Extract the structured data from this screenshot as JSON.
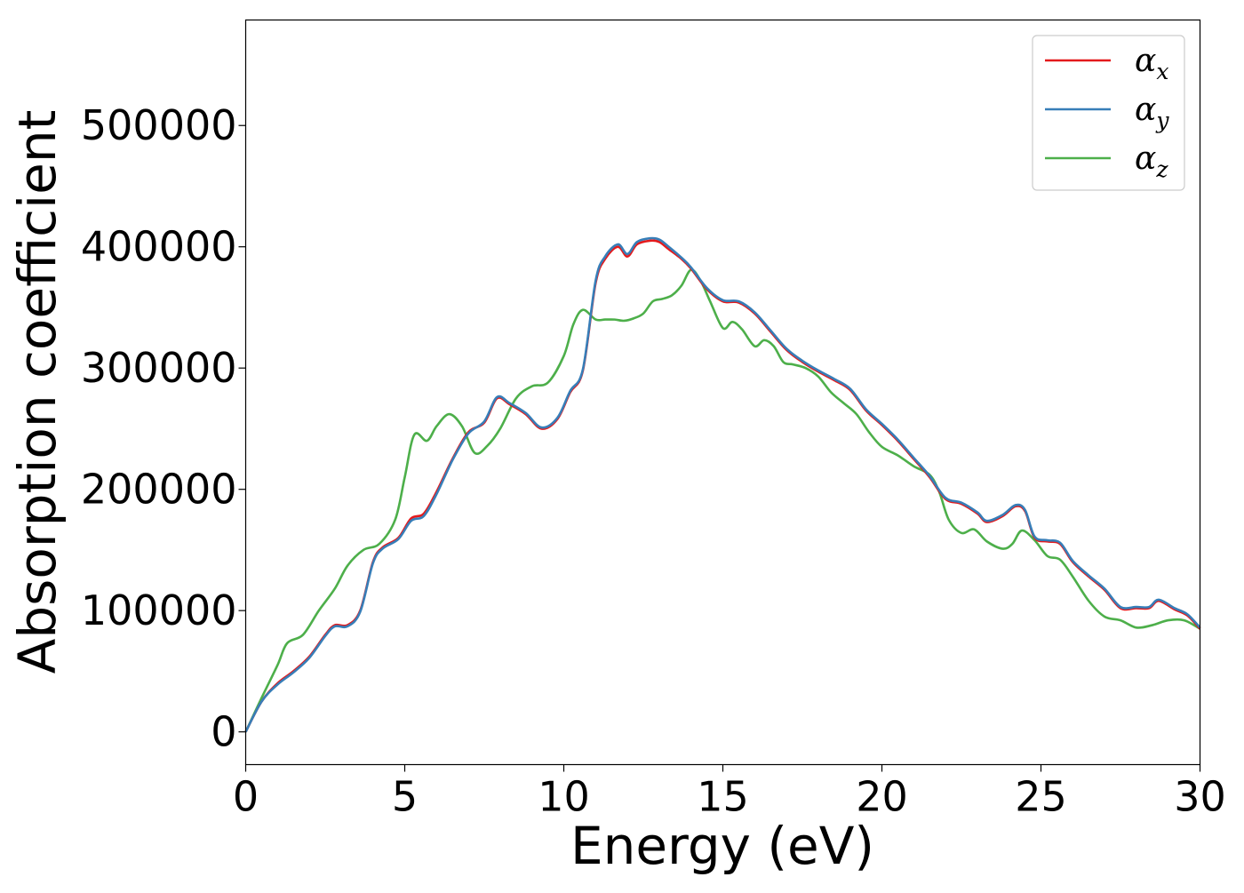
{
  "chart_data": {
    "type": "line",
    "xlabel": "Energy (eV)",
    "ylabel": "Absorption coefficient",
    "xlim": [
      0,
      30
    ],
    "ylim": [
      -27000,
      587000
    ],
    "xticks": [
      0,
      5,
      10,
      15,
      20,
      25,
      30
    ],
    "yticks": [
      0,
      100000,
      200000,
      300000,
      400000,
      500000
    ],
    "grid": false,
    "legend_position": "top-right",
    "series": [
      {
        "name": "αx",
        "legend_base": "α",
        "legend_sub": "x",
        "color": "#e41a1c",
        "x": [
          0,
          0.5,
          1,
          1.5,
          2,
          2.5,
          2.8,
          3.2,
          3.6,
          4,
          4.3,
          4.8,
          5.2,
          5.6,
          6,
          6.5,
          7,
          7.5,
          7.9,
          8.3,
          8.8,
          9.3,
          9.8,
          10.2,
          10.6,
          11,
          11.3,
          11.7,
          12,
          12.3,
          12.7,
          13,
          13.3,
          13.7,
          14,
          14.5,
          15,
          15.5,
          16,
          16.5,
          17,
          17.5,
          18,
          18.5,
          19,
          19.5,
          20,
          20.5,
          21,
          21.5,
          22,
          22.5,
          23,
          23.3,
          23.8,
          24.2,
          24.5,
          24.8,
          25.2,
          25.6,
          26,
          26.5,
          27,
          27.5,
          28,
          28.4,
          28.7,
          29.2,
          29.6,
          30
        ],
        "y": [
          0,
          25000,
          40000,
          50000,
          62000,
          80000,
          88000,
          88000,
          100000,
          140000,
          152000,
          160000,
          176000,
          180000,
          198000,
          225000,
          247000,
          255000,
          275000,
          270000,
          262000,
          250000,
          258000,
          280000,
          298000,
          370000,
          390000,
          400000,
          392000,
          402000,
          405000,
          404000,
          398000,
          390000,
          382000,
          365000,
          355000,
          354000,
          345000,
          330000,
          315000,
          305000,
          297000,
          290000,
          282000,
          265000,
          253000,
          240000,
          225000,
          210000,
          192000,
          188000,
          180000,
          173000,
          178000,
          186000,
          182000,
          160000,
          157000,
          155000,
          140000,
          128000,
          117000,
          102000,
          102000,
          102000,
          108000,
          101000,
          96000,
          85000
        ]
      },
      {
        "name": "αy",
        "legend_base": "α",
        "legend_sub": "y",
        "color": "#377eb8",
        "x": [
          0,
          0.5,
          1,
          1.5,
          2,
          2.5,
          2.8,
          3.2,
          3.6,
          4,
          4.3,
          4.8,
          5.2,
          5.6,
          6,
          6.5,
          7,
          7.5,
          7.9,
          8.3,
          8.8,
          9.3,
          9.8,
          10.2,
          10.6,
          11,
          11.3,
          11.7,
          12,
          12.3,
          12.7,
          13,
          13.3,
          13.7,
          14,
          14.5,
          15,
          15.5,
          16,
          16.5,
          17,
          17.5,
          18,
          18.5,
          19,
          19.5,
          20,
          20.5,
          21,
          21.5,
          22,
          22.5,
          23,
          23.3,
          23.8,
          24.2,
          24.5,
          24.8,
          25.2,
          25.6,
          26,
          26.5,
          27,
          27.5,
          28,
          28.4,
          28.7,
          29.2,
          29.6,
          30
        ],
        "y": [
          0,
          25000,
          39000,
          49000,
          61000,
          79000,
          87000,
          87000,
          99000,
          139000,
          151000,
          159000,
          174000,
          178000,
          196000,
          224000,
          246000,
          256000,
          276000,
          271000,
          263000,
          251000,
          259000,
          281000,
          299000,
          372000,
          392000,
          402000,
          394000,
          404000,
          407000,
          406000,
          400000,
          391000,
          383000,
          366000,
          356000,
          355000,
          346000,
          331000,
          316000,
          306000,
          298000,
          291000,
          283000,
          266000,
          254000,
          241000,
          226000,
          211000,
          193000,
          189000,
          181000,
          174000,
          179000,
          187000,
          183000,
          161000,
          158000,
          156000,
          141000,
          129000,
          118000,
          103000,
          103000,
          103000,
          109000,
          102000,
          97000,
          86000
        ]
      },
      {
        "name": "αz",
        "legend_base": "α",
        "legend_sub": "z",
        "color": "#4daf4a",
        "x": [
          0,
          0.5,
          1,
          1.3,
          1.8,
          2.3,
          2.8,
          3.2,
          3.7,
          4.2,
          4.7,
          5,
          5.3,
          5.7,
          6,
          6.4,
          6.8,
          7.2,
          7.6,
          8,
          8.5,
          9,
          9.5,
          10,
          10.3,
          10.6,
          11,
          11.3,
          11.6,
          11.9,
          12.2,
          12.5,
          12.8,
          13.1,
          13.4,
          13.7,
          14,
          14.3,
          14.6,
          15,
          15.3,
          15.6,
          16,
          16.3,
          16.6,
          16.9,
          17.2,
          17.6,
          18,
          18.4,
          18.8,
          19.2,
          19.6,
          20,
          20.5,
          21,
          21.5,
          21.8,
          22.1,
          22.5,
          22.9,
          23.3,
          23.8,
          24.1,
          24.4,
          24.8,
          25.2,
          25.6,
          26,
          26.5,
          27,
          27.5,
          28,
          28.5,
          29,
          29.5,
          30
        ],
        "y": [
          0,
          28000,
          55000,
          73000,
          80000,
          100000,
          118000,
          137000,
          150000,
          155000,
          175000,
          210000,
          245000,
          240000,
          252000,
          262000,
          252000,
          230000,
          236000,
          250000,
          275000,
          285000,
          288000,
          310000,
          336000,
          348000,
          340000,
          340000,
          340000,
          339000,
          341000,
          345000,
          355000,
          357000,
          360000,
          368000,
          381000,
          372000,
          355000,
          333000,
          338000,
          332000,
          318000,
          323000,
          318000,
          305000,
          303000,
          300000,
          293000,
          280000,
          271000,
          262000,
          247000,
          235000,
          228000,
          219000,
          212000,
          198000,
          175000,
          164000,
          167000,
          157000,
          151000,
          155000,
          166000,
          158000,
          145000,
          142000,
          128000,
          108000,
          95000,
          92000,
          86000,
          88000,
          92000,
          92000,
          85000
        ]
      }
    ]
  }
}
